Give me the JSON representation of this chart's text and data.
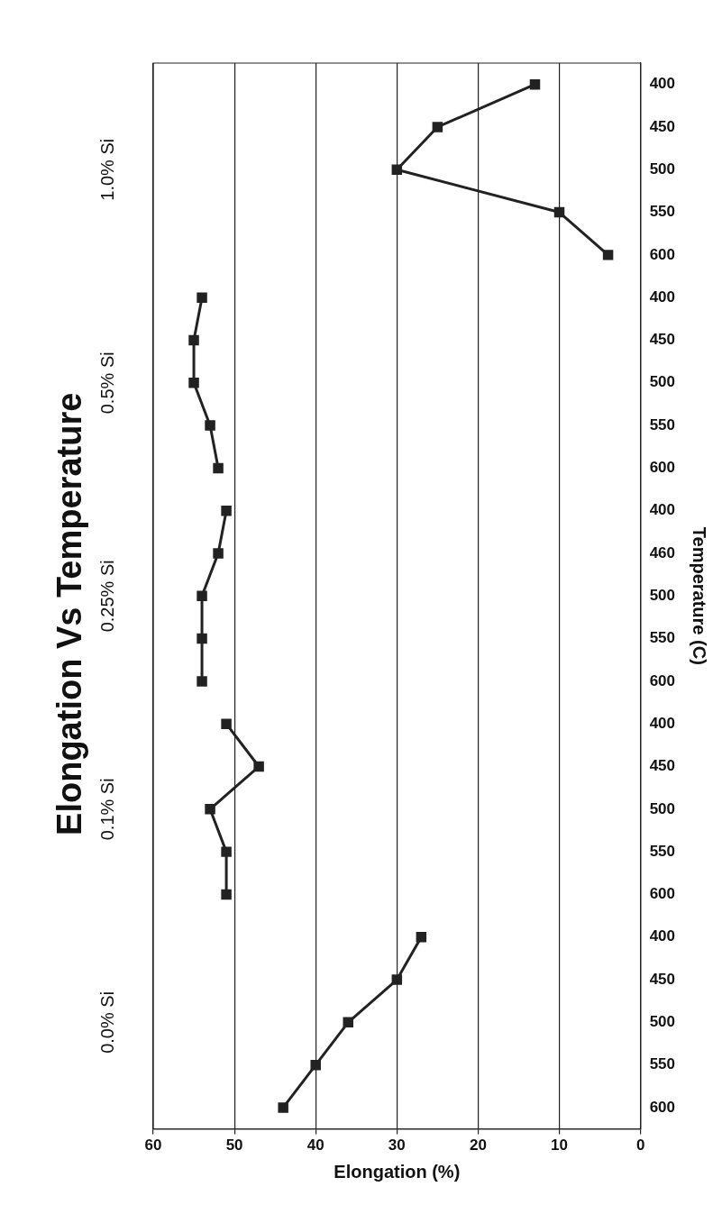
{
  "chart_data": {
    "type": "line",
    "orientation": "horizontal",
    "title": "Elongation Vs Temperature",
    "xlabel": "Elongation (%)",
    "ylabel": "Temperature (C)",
    "categories": [
      "400",
      "450",
      "500",
      "550",
      "600",
      "400",
      "450",
      "500",
      "550",
      "600",
      "400",
      "460",
      "500",
      "550",
      "600",
      "400",
      "450",
      "500",
      "550",
      "600",
      "400",
      "450",
      "500",
      "550",
      "600"
    ],
    "series": [
      {
        "color": "#222222",
        "values": [
          13,
          25,
          30,
          10,
          4,
          null,
          null,
          null,
          null,
          null,
          null,
          null,
          null,
          null,
          null,
          null,
          null,
          null,
          null,
          null,
          null,
          null,
          null,
          null,
          null
        ]
      },
      {
        "color": "#222222",
        "values": [
          null,
          null,
          null,
          null,
          null,
          54,
          55,
          55,
          53,
          52,
          null,
          null,
          null,
          null,
          null,
          null,
          null,
          null,
          null,
          null,
          null,
          null,
          null,
          null,
          null
        ]
      },
      {
        "color": "#222222",
        "values": [
          null,
          null,
          null,
          null,
          null,
          null,
          null,
          null,
          null,
          null,
          51,
          52,
          54,
          54,
          54,
          null,
          null,
          null,
          null,
          null,
          null,
          null,
          null,
          null,
          null
        ]
      },
      {
        "color": "#222222",
        "values": [
          null,
          null,
          null,
          null,
          null,
          null,
          null,
          null,
          null,
          null,
          null,
          null,
          null,
          null,
          null,
          51,
          47,
          53,
          51,
          51,
          null,
          null,
          null,
          null,
          null
        ]
      },
      {
        "color": "#222222",
        "values": [
          null,
          null,
          null,
          null,
          null,
          null,
          null,
          null,
          null,
          null,
          null,
          null,
          null,
          null,
          null,
          null,
          null,
          null,
          null,
          null,
          27,
          30,
          36,
          40,
          44
        ]
      }
    ],
    "annotations": [
      "1.0% Si",
      "0.5% Si",
      "0.25% Si",
      "0.1% Si",
      "0.0% Si"
    ],
    "xlim": [
      60,
      0
    ],
    "xticks": [
      0,
      10,
      20,
      30,
      40,
      50,
      60
    ],
    "grid": "x",
    "marker": "square",
    "line_style": "solid",
    "legend": false
  }
}
